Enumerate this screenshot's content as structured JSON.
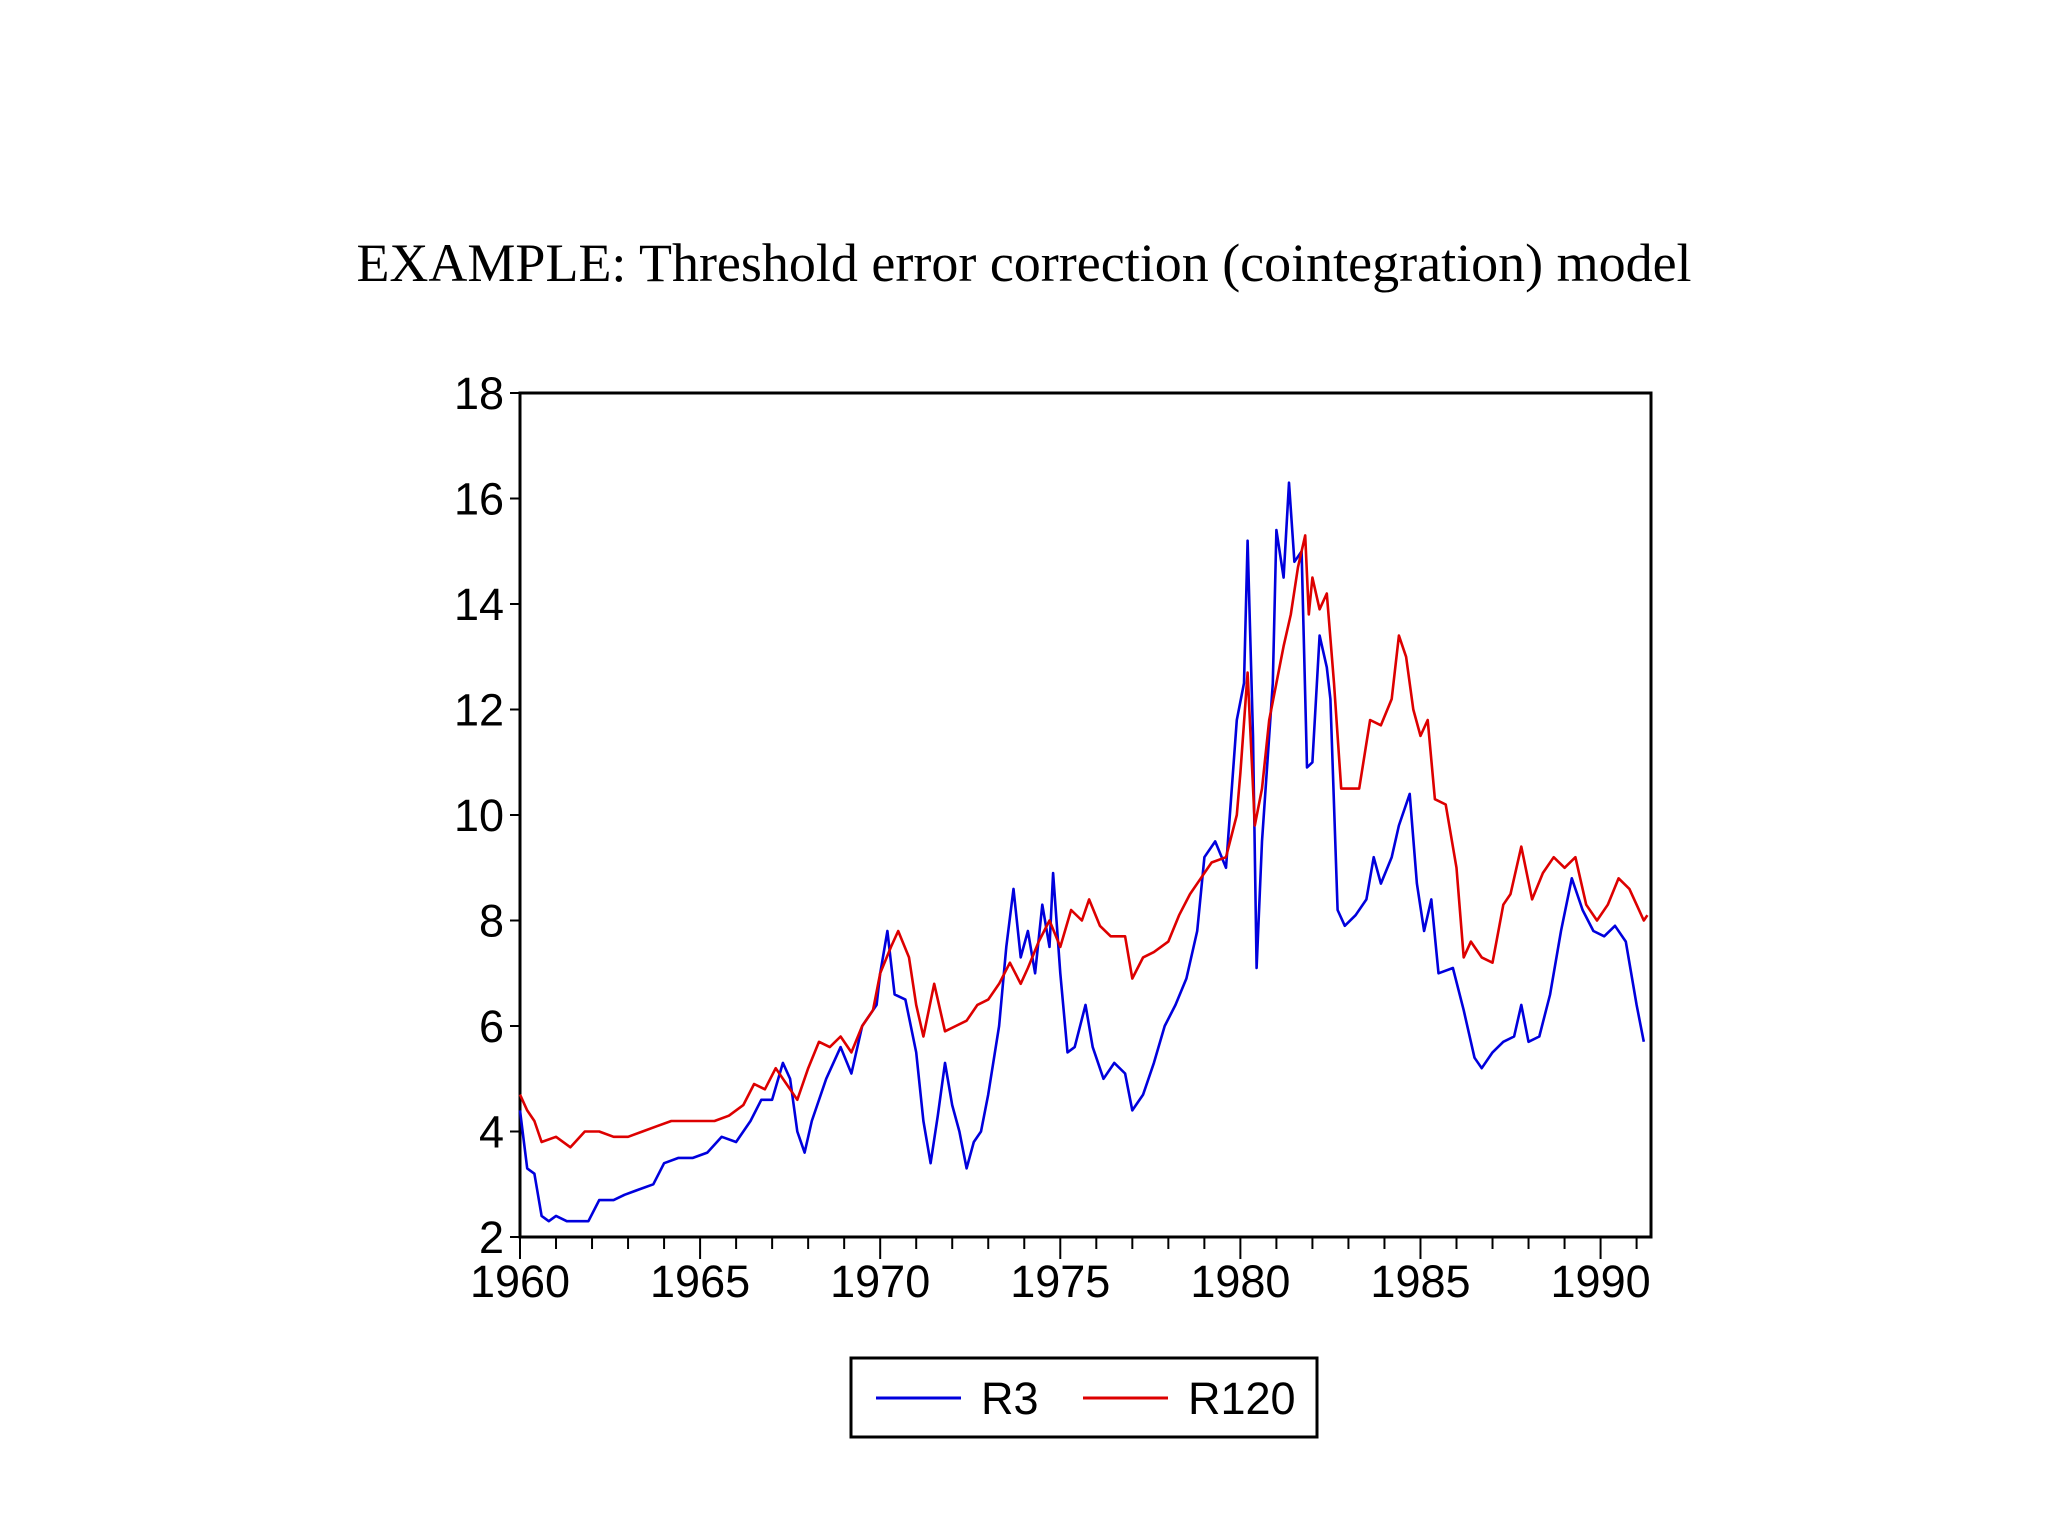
{
  "slide": {
    "title": "EXAMPLE: Threshold error correction (cointegration) model"
  },
  "colors": {
    "r3": "#0000dd",
    "r120": "#dd0000",
    "axis": "#000000"
  },
  "chart_data": {
    "type": "line",
    "title": "",
    "xlabel": "",
    "ylabel": "",
    "xlim": [
      1960.0,
      1991.4
    ],
    "ylim": [
      2,
      18
    ],
    "x_ticks": [
      1960,
      1965,
      1970,
      1975,
      1980,
      1985,
      1990
    ],
    "x_tick_labels": [
      "1960",
      "1965",
      "1970",
      "1975",
      "1980",
      "1985",
      "1990"
    ],
    "y_ticks": [
      2,
      4,
      6,
      8,
      10,
      12,
      14,
      16,
      18
    ],
    "y_tick_labels": [
      "2",
      "4",
      "6",
      "8",
      "10",
      "12",
      "14",
      "16",
      "18"
    ],
    "legend_position": "bottom-center",
    "grid": false,
    "series": [
      {
        "name": "R3",
        "color": "#0000dd",
        "points": [
          [
            1960.0,
            4.4
          ],
          [
            1960.2,
            3.3
          ],
          [
            1960.4,
            3.2
          ],
          [
            1960.6,
            2.4
          ],
          [
            1960.8,
            2.3
          ],
          [
            1961.0,
            2.4
          ],
          [
            1961.3,
            2.3
          ],
          [
            1961.6,
            2.3
          ],
          [
            1961.9,
            2.3
          ],
          [
            1962.2,
            2.7
          ],
          [
            1962.6,
            2.7
          ],
          [
            1962.9,
            2.8
          ],
          [
            1963.3,
            2.9
          ],
          [
            1963.7,
            3.0
          ],
          [
            1964.0,
            3.4
          ],
          [
            1964.4,
            3.5
          ],
          [
            1964.8,
            3.5
          ],
          [
            1965.2,
            3.6
          ],
          [
            1965.6,
            3.9
          ],
          [
            1966.0,
            3.8
          ],
          [
            1966.4,
            4.2
          ],
          [
            1966.7,
            4.6
          ],
          [
            1967.0,
            4.6
          ],
          [
            1967.3,
            5.3
          ],
          [
            1967.5,
            5.0
          ],
          [
            1967.7,
            4.0
          ],
          [
            1967.9,
            3.6
          ],
          [
            1968.1,
            4.2
          ],
          [
            1968.5,
            5.0
          ],
          [
            1968.9,
            5.6
          ],
          [
            1969.2,
            5.1
          ],
          [
            1969.5,
            6.0
          ],
          [
            1969.9,
            6.4
          ],
          [
            1970.0,
            7.0
          ],
          [
            1970.2,
            7.8
          ],
          [
            1970.4,
            6.6
          ],
          [
            1970.7,
            6.5
          ],
          [
            1971.0,
            5.5
          ],
          [
            1971.2,
            4.2
          ],
          [
            1971.4,
            3.4
          ],
          [
            1971.6,
            4.3
          ],
          [
            1971.8,
            5.3
          ],
          [
            1972.0,
            4.5
          ],
          [
            1972.2,
            4.0
          ],
          [
            1972.4,
            3.3
          ],
          [
            1972.6,
            3.8
          ],
          [
            1972.8,
            4.0
          ],
          [
            1973.0,
            4.7
          ],
          [
            1973.3,
            6.0
          ],
          [
            1973.5,
            7.5
          ],
          [
            1973.7,
            8.6
          ],
          [
            1973.9,
            7.3
          ],
          [
            1974.1,
            7.8
          ],
          [
            1974.3,
            7.0
          ],
          [
            1974.5,
            8.3
          ],
          [
            1974.7,
            7.5
          ],
          [
            1974.8,
            8.9
          ],
          [
            1975.0,
            7.0
          ],
          [
            1975.2,
            5.5
          ],
          [
            1975.4,
            5.6
          ],
          [
            1975.7,
            6.4
          ],
          [
            1975.9,
            5.6
          ],
          [
            1976.2,
            5.0
          ],
          [
            1976.5,
            5.3
          ],
          [
            1976.8,
            5.1
          ],
          [
            1977.0,
            4.4
          ],
          [
            1977.3,
            4.7
          ],
          [
            1977.6,
            5.3
          ],
          [
            1977.9,
            6.0
          ],
          [
            1978.2,
            6.4
          ],
          [
            1978.5,
            6.9
          ],
          [
            1978.8,
            7.8
          ],
          [
            1979.0,
            9.2
          ],
          [
            1979.3,
            9.5
          ],
          [
            1979.6,
            9.0
          ],
          [
            1979.9,
            11.8
          ],
          [
            1980.1,
            12.5
          ],
          [
            1980.2,
            15.2
          ],
          [
            1980.35,
            11.5
          ],
          [
            1980.45,
            7.1
          ],
          [
            1980.6,
            9.5
          ],
          [
            1980.8,
            11.5
          ],
          [
            1980.9,
            12.5
          ],
          [
            1981.0,
            15.4
          ],
          [
            1981.2,
            14.5
          ],
          [
            1981.35,
            16.3
          ],
          [
            1981.5,
            14.8
          ],
          [
            1981.7,
            15.0
          ],
          [
            1981.85,
            10.9
          ],
          [
            1982.0,
            11.0
          ],
          [
            1982.2,
            13.4
          ],
          [
            1982.4,
            12.8
          ],
          [
            1982.5,
            12.2
          ],
          [
            1982.7,
            8.2
          ],
          [
            1982.9,
            7.9
          ],
          [
            1983.2,
            8.1
          ],
          [
            1983.5,
            8.4
          ],
          [
            1983.7,
            9.2
          ],
          [
            1983.9,
            8.7
          ],
          [
            1984.2,
            9.2
          ],
          [
            1984.4,
            9.8
          ],
          [
            1984.7,
            10.4
          ],
          [
            1984.9,
            8.7
          ],
          [
            1985.1,
            7.8
          ],
          [
            1985.3,
            8.4
          ],
          [
            1985.5,
            7.0
          ],
          [
            1985.9,
            7.1
          ],
          [
            1986.2,
            6.3
          ],
          [
            1986.5,
            5.4
          ],
          [
            1986.7,
            5.2
          ],
          [
            1987.0,
            5.5
          ],
          [
            1987.3,
            5.7
          ],
          [
            1987.6,
            5.8
          ],
          [
            1987.8,
            6.4
          ],
          [
            1988.0,
            5.7
          ],
          [
            1988.3,
            5.8
          ],
          [
            1988.6,
            6.6
          ],
          [
            1988.9,
            7.8
          ],
          [
            1989.2,
            8.8
          ],
          [
            1989.5,
            8.2
          ],
          [
            1989.8,
            7.8
          ],
          [
            1990.1,
            7.7
          ],
          [
            1990.4,
            7.9
          ],
          [
            1990.7,
            7.6
          ],
          [
            1991.0,
            6.4
          ],
          [
            1991.2,
            5.7
          ]
        ]
      },
      {
        "name": "R120",
        "color": "#dd0000",
        "points": [
          [
            1960.0,
            4.7
          ],
          [
            1960.2,
            4.4
          ],
          [
            1960.4,
            4.2
          ],
          [
            1960.6,
            3.8
          ],
          [
            1961.0,
            3.9
          ],
          [
            1961.4,
            3.7
          ],
          [
            1961.8,
            4.0
          ],
          [
            1962.2,
            4.0
          ],
          [
            1962.6,
            3.9
          ],
          [
            1963.0,
            3.9
          ],
          [
            1963.4,
            4.0
          ],
          [
            1963.8,
            4.1
          ],
          [
            1964.2,
            4.2
          ],
          [
            1964.6,
            4.2
          ],
          [
            1965.0,
            4.2
          ],
          [
            1965.4,
            4.2
          ],
          [
            1965.8,
            4.3
          ],
          [
            1966.2,
            4.5
          ],
          [
            1966.5,
            4.9
          ],
          [
            1966.8,
            4.8
          ],
          [
            1967.1,
            5.2
          ],
          [
            1967.4,
            4.9
          ],
          [
            1967.7,
            4.6
          ],
          [
            1968.0,
            5.2
          ],
          [
            1968.3,
            5.7
          ],
          [
            1968.6,
            5.6
          ],
          [
            1968.9,
            5.8
          ],
          [
            1969.2,
            5.5
          ],
          [
            1969.5,
            6.0
          ],
          [
            1969.8,
            6.3
          ],
          [
            1970.0,
            7.0
          ],
          [
            1970.3,
            7.5
          ],
          [
            1970.5,
            7.8
          ],
          [
            1970.8,
            7.3
          ],
          [
            1971.0,
            6.4
          ],
          [
            1971.2,
            5.8
          ],
          [
            1971.5,
            6.8
          ],
          [
            1971.8,
            5.9
          ],
          [
            1972.1,
            6.0
          ],
          [
            1972.4,
            6.1
          ],
          [
            1972.7,
            6.4
          ],
          [
            1973.0,
            6.5
          ],
          [
            1973.3,
            6.8
          ],
          [
            1973.6,
            7.2
          ],
          [
            1973.9,
            6.8
          ],
          [
            1974.1,
            7.1
          ],
          [
            1974.4,
            7.6
          ],
          [
            1974.7,
            8.0
          ],
          [
            1975.0,
            7.5
          ],
          [
            1975.3,
            8.2
          ],
          [
            1975.6,
            8.0
          ],
          [
            1975.8,
            8.4
          ],
          [
            1976.1,
            7.9
          ],
          [
            1976.4,
            7.7
          ],
          [
            1976.8,
            7.7
          ],
          [
            1977.0,
            6.9
          ],
          [
            1977.3,
            7.3
          ],
          [
            1977.6,
            7.4
          ],
          [
            1978.0,
            7.6
          ],
          [
            1978.3,
            8.1
          ],
          [
            1978.6,
            8.5
          ],
          [
            1978.9,
            8.8
          ],
          [
            1979.2,
            9.1
          ],
          [
            1979.6,
            9.2
          ],
          [
            1979.9,
            10.0
          ],
          [
            1980.0,
            10.8
          ],
          [
            1980.2,
            12.7
          ],
          [
            1980.4,
            9.8
          ],
          [
            1980.6,
            10.5
          ],
          [
            1980.8,
            11.8
          ],
          [
            1981.0,
            12.5
          ],
          [
            1981.2,
            13.2
          ],
          [
            1981.4,
            13.8
          ],
          [
            1981.6,
            14.7
          ],
          [
            1981.8,
            15.3
          ],
          [
            1981.9,
            13.8
          ],
          [
            1982.0,
            14.5
          ],
          [
            1982.2,
            13.9
          ],
          [
            1982.4,
            14.2
          ],
          [
            1982.6,
            12.5
          ],
          [
            1982.8,
            10.5
          ],
          [
            1983.0,
            10.5
          ],
          [
            1983.3,
            10.5
          ],
          [
            1983.6,
            11.8
          ],
          [
            1983.9,
            11.7
          ],
          [
            1984.2,
            12.2
          ],
          [
            1984.4,
            13.4
          ],
          [
            1984.6,
            13.0
          ],
          [
            1984.8,
            12.0
          ],
          [
            1985.0,
            11.5
          ],
          [
            1985.2,
            11.8
          ],
          [
            1985.4,
            10.3
          ],
          [
            1985.7,
            10.2
          ],
          [
            1986.0,
            9.0
          ],
          [
            1986.2,
            7.3
          ],
          [
            1986.4,
            7.6
          ],
          [
            1986.7,
            7.3
          ],
          [
            1987.0,
            7.2
          ],
          [
            1987.3,
            8.3
          ],
          [
            1987.5,
            8.5
          ],
          [
            1987.8,
            9.4
          ],
          [
            1988.1,
            8.4
          ],
          [
            1988.4,
            8.9
          ],
          [
            1988.7,
            9.2
          ],
          [
            1989.0,
            9.0
          ],
          [
            1989.3,
            9.2
          ],
          [
            1989.6,
            8.3
          ],
          [
            1989.9,
            8.0
          ],
          [
            1990.2,
            8.3
          ],
          [
            1990.5,
            8.8
          ],
          [
            1990.8,
            8.6
          ],
          [
            1991.0,
            8.3
          ],
          [
            1991.2,
            8.0
          ],
          [
            1991.3,
            8.1
          ]
        ]
      }
    ]
  }
}
